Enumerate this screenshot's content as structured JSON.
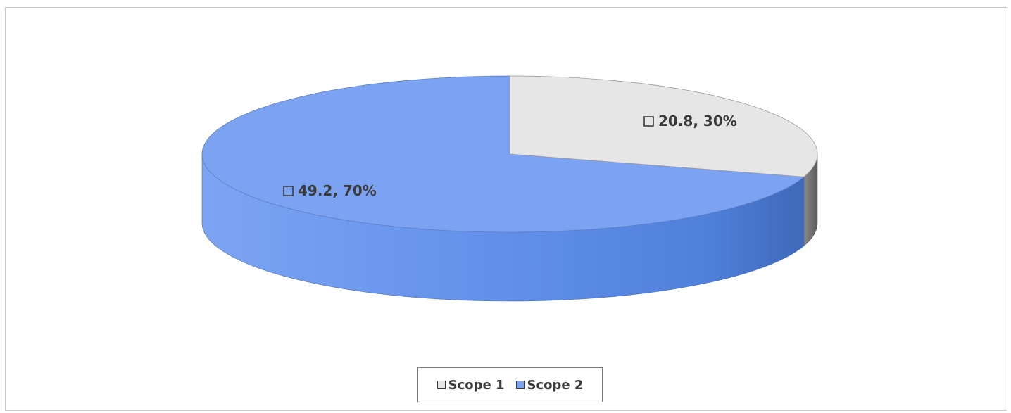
{
  "chart_data": {
    "type": "pie",
    "series": [
      {
        "name": "Scope 1",
        "value": 20.8,
        "percent": 30,
        "label": "20.8, 30%",
        "color": "#e6e6e6",
        "side_color": "#7a7a7a"
      },
      {
        "name": "Scope 2",
        "value": 49.2,
        "percent": 70,
        "label": "49.2, 70%",
        "color": "#7ca2f2",
        "side_color": "#5b88e6"
      }
    ],
    "legend": {
      "position": "bottom",
      "items": [
        "Scope 1",
        "Scope 2"
      ]
    },
    "three_d": true
  }
}
